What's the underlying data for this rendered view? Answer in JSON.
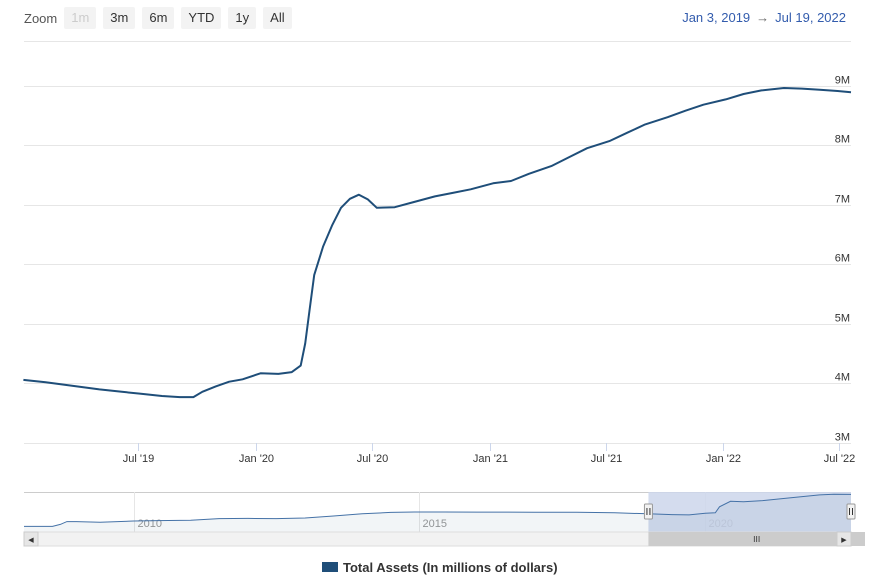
{
  "toolbar": {
    "zoom_label": "Zoom",
    "buttons": [
      {
        "label": "1m",
        "enabled": false
      },
      {
        "label": "3m",
        "enabled": true
      },
      {
        "label": "6m",
        "enabled": true
      },
      {
        "label": "YTD",
        "enabled": true
      },
      {
        "label": "1y",
        "enabled": true
      },
      {
        "label": "All",
        "enabled": true
      }
    ]
  },
  "range": {
    "from": "Jan 3, 2019",
    "arrow": "→",
    "to": "Jul 19, 2022"
  },
  "colors": {
    "line": "#1f4e79",
    "grid": "#e6e6e6",
    "navigator_mask": "#ccd6eb",
    "range_text": "#335cad"
  },
  "chart_data": {
    "type": "line",
    "series": [
      {
        "name": "Total Assets (In millions of dollars)",
        "points": [
          [
            "2019-01-02",
            4.06
          ],
          [
            "2019-02-06",
            4.02
          ],
          [
            "2019-03-06",
            3.98
          ],
          [
            "2019-04-03",
            3.94
          ],
          [
            "2019-05-01",
            3.9
          ],
          [
            "2019-06-05",
            3.86
          ],
          [
            "2019-07-03",
            3.83
          ],
          [
            "2019-08-07",
            3.79
          ],
          [
            "2019-09-04",
            3.77
          ],
          [
            "2019-09-25",
            3.77
          ],
          [
            "2019-10-09",
            3.86
          ],
          [
            "2019-10-30",
            3.95
          ],
          [
            "2019-11-20",
            4.03
          ],
          [
            "2019-12-11",
            4.07
          ],
          [
            "2020-01-08",
            4.17
          ],
          [
            "2020-02-05",
            4.16
          ],
          [
            "2020-02-26",
            4.19
          ],
          [
            "2020-03-11",
            4.3
          ],
          [
            "2020-03-18",
            4.67
          ],
          [
            "2020-03-25",
            5.25
          ],
          [
            "2020-04-01",
            5.82
          ],
          [
            "2020-04-15",
            6.3
          ],
          [
            "2020-04-29",
            6.65
          ],
          [
            "2020-05-13",
            6.95
          ],
          [
            "2020-05-27",
            7.1
          ],
          [
            "2020-06-10",
            7.17
          ],
          [
            "2020-06-24",
            7.09
          ],
          [
            "2020-07-08",
            6.95
          ],
          [
            "2020-08-05",
            6.96
          ],
          [
            "2020-09-02",
            7.04
          ],
          [
            "2020-10-07",
            7.14
          ],
          [
            "2020-11-04",
            7.2
          ],
          [
            "2020-12-02",
            7.26
          ],
          [
            "2021-01-06",
            7.36
          ],
          [
            "2021-02-03",
            7.4
          ],
          [
            "2021-03-03",
            7.52
          ],
          [
            "2021-04-07",
            7.65
          ],
          [
            "2021-05-05",
            7.8
          ],
          [
            "2021-06-02",
            7.95
          ],
          [
            "2021-07-07",
            8.07
          ],
          [
            "2021-08-04",
            8.21
          ],
          [
            "2021-09-01",
            8.35
          ],
          [
            "2021-10-06",
            8.47
          ],
          [
            "2021-11-03",
            8.58
          ],
          [
            "2021-12-01",
            8.68
          ],
          [
            "2022-01-05",
            8.77
          ],
          [
            "2022-02-02",
            8.86
          ],
          [
            "2022-03-02",
            8.92
          ],
          [
            "2022-04-06",
            8.96
          ],
          [
            "2022-05-04",
            8.95
          ],
          [
            "2022-06-01",
            8.93
          ],
          [
            "2022-06-29",
            8.91
          ],
          [
            "2022-07-20",
            8.89
          ]
        ]
      }
    ],
    "ylim": [
      3,
      9.75
    ],
    "yticks": [
      {
        "value": 3,
        "label": "3M"
      },
      {
        "value": 4,
        "label": "4M"
      },
      {
        "value": 5,
        "label": "5M"
      },
      {
        "value": 6,
        "label": "6M"
      },
      {
        "value": 7,
        "label": "7M"
      },
      {
        "value": 8,
        "label": "8M"
      },
      {
        "value": 9,
        "label": "9M"
      }
    ],
    "xlim": [
      "2019-01-03",
      "2022-07-20"
    ],
    "xticks": [
      {
        "date": "2019-07-01",
        "label": "Jul '19"
      },
      {
        "date": "2020-01-01",
        "label": "Jan '20"
      },
      {
        "date": "2020-07-01",
        "label": "Jul '20"
      },
      {
        "date": "2021-01-01",
        "label": "Jan '21"
      },
      {
        "date": "2021-07-01",
        "label": "Jul '21"
      },
      {
        "date": "2022-01-01",
        "label": "Jan '22"
      },
      {
        "date": "2022-07-01",
        "label": "Jul '22"
      }
    ],
    "grid": true,
    "legend": "bottom",
    "navigator": {
      "xlim": [
        "2008-02-01",
        "2022-07-20"
      ],
      "ylim": [
        0,
        9.5
      ],
      "selected_range": [
        "2019-01-03",
        "2022-07-20"
      ],
      "ticks": [
        {
          "date": "2010-01-01",
          "label": "2010"
        },
        {
          "date": "2015-01-01",
          "label": "2015"
        },
        {
          "date": "2020-01-01",
          "label": "2020"
        }
      ],
      "points": [
        [
          "2008-02-01",
          0.9
        ],
        [
          "2008-08-01",
          0.9
        ],
        [
          "2008-09-20",
          1.4
        ],
        [
          "2008-11-01",
          2.1
        ],
        [
          "2009-01-01",
          2.1
        ],
        [
          "2009-06-01",
          1.95
        ],
        [
          "2010-01-01",
          2.25
        ],
        [
          "2010-06-01",
          2.35
        ],
        [
          "2011-01-01",
          2.45
        ],
        [
          "2011-07-01",
          2.85
        ],
        [
          "2012-01-01",
          2.9
        ],
        [
          "2012-07-01",
          2.85
        ],
        [
          "2013-01-01",
          3.0
        ],
        [
          "2013-07-01",
          3.5
        ],
        [
          "2014-01-01",
          4.05
        ],
        [
          "2014-07-01",
          4.4
        ],
        [
          "2014-12-01",
          4.5
        ],
        [
          "2015-06-01",
          4.5
        ],
        [
          "2016-01-01",
          4.48
        ],
        [
          "2016-06-01",
          4.47
        ],
        [
          "2017-01-01",
          4.45
        ],
        [
          "2017-06-01",
          4.45
        ],
        [
          "2017-10-01",
          4.45
        ],
        [
          "2018-06-01",
          4.3
        ],
        [
          "2019-01-01",
          4.05
        ],
        [
          "2019-06-01",
          3.86
        ],
        [
          "2019-09-20",
          3.77
        ],
        [
          "2020-01-01",
          4.17
        ],
        [
          "2020-03-05",
          4.3
        ],
        [
          "2020-04-01",
          5.8
        ],
        [
          "2020-06-10",
          7.17
        ],
        [
          "2020-09-01",
          7.04
        ],
        [
          "2021-01-01",
          7.36
        ],
        [
          "2021-07-01",
          8.07
        ],
        [
          "2022-01-01",
          8.77
        ],
        [
          "2022-04-01",
          8.96
        ],
        [
          "2022-07-20",
          8.89
        ]
      ]
    }
  },
  "navigator_scroll": {
    "left_arrow": "◀",
    "right_arrow": "▶",
    "grip": "III"
  }
}
